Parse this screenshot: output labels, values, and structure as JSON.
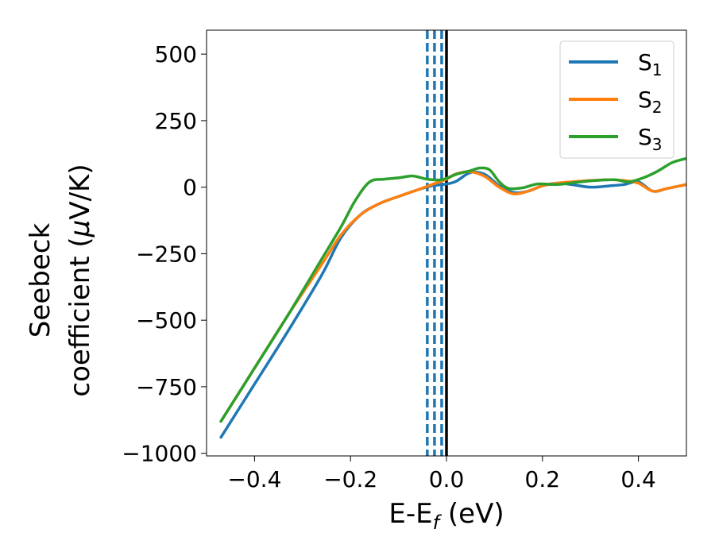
{
  "chart_data": {
    "type": "line",
    "title": "",
    "xlabel": "E-E",
    "xlabel_sub": "f",
    "xlabel_unit": " (eV)",
    "ylabel_line1": "Seebeck",
    "ylabel_line2": "coefficient  (",
    "ylabel_mu": "μ",
    "ylabel_unit": "V/K)",
    "xlim": [
      -0.5,
      0.5
    ],
    "ylim": [
      -1010,
      590
    ],
    "xticks": [
      -0.4,
      -0.2,
      0.0,
      0.2,
      0.4
    ],
    "xtick_labels": [
      "−0.4",
      "−0.2",
      "0.0",
      "0.2",
      "0.4"
    ],
    "yticks": [
      500,
      250,
      0,
      -250,
      -500,
      -750,
      -1000
    ],
    "ytick_labels": [
      "500",
      "250",
      "0",
      "−250",
      "−500",
      "−750",
      "−1000"
    ],
    "grid": false,
    "legend_position": "top-right",
    "reference_lines": {
      "fermi_level": {
        "x": 0.0,
        "color": "#000000",
        "style": "solid"
      },
      "dashed": {
        "x": [
          -0.04,
          -0.025,
          -0.01
        ],
        "color": "#1f77b4",
        "style": "dashed"
      }
    },
    "series": [
      {
        "name": "S",
        "subscript": "1",
        "color": "#1f77b4",
        "points": [
          [
            -0.47,
            -940
          ],
          [
            -0.4,
            -740
          ],
          [
            -0.33,
            -540
          ],
          [
            -0.26,
            -330
          ],
          [
            -0.22,
            -190
          ],
          [
            -0.18,
            -105
          ],
          [
            -0.14,
            -62
          ],
          [
            -0.1,
            -35
          ],
          [
            -0.06,
            -10
          ],
          [
            -0.03,
            5
          ],
          [
            0.0,
            12
          ],
          [
            0.02,
            22
          ],
          [
            0.05,
            55
          ],
          [
            0.08,
            48
          ],
          [
            0.11,
            5
          ],
          [
            0.14,
            -20
          ],
          [
            0.17,
            -15
          ],
          [
            0.2,
            5
          ],
          [
            0.23,
            15
          ],
          [
            0.26,
            10
          ],
          [
            0.3,
            0
          ],
          [
            0.34,
            5
          ],
          [
            0.37,
            10
          ],
          [
            0.4,
            20
          ],
          [
            0.43,
            -15
          ],
          [
            0.46,
            -5
          ],
          [
            0.5,
            10
          ]
        ]
      },
      {
        "name": "S",
        "subscript": "2",
        "color": "#ff7f0e",
        "points": [
          [
            -0.47,
            -880
          ],
          [
            -0.4,
            -680
          ],
          [
            -0.33,
            -480
          ],
          [
            -0.26,
            -290
          ],
          [
            -0.22,
            -180
          ],
          [
            -0.18,
            -105
          ],
          [
            -0.14,
            -62
          ],
          [
            -0.1,
            -35
          ],
          [
            -0.06,
            -10
          ],
          [
            -0.03,
            10
          ],
          [
            0.0,
            30
          ],
          [
            0.02,
            50
          ],
          [
            0.05,
            58
          ],
          [
            0.08,
            40
          ],
          [
            0.11,
            0
          ],
          [
            0.14,
            -25
          ],
          [
            0.17,
            -15
          ],
          [
            0.2,
            5
          ],
          [
            0.23,
            15
          ],
          [
            0.26,
            20
          ],
          [
            0.3,
            25
          ],
          [
            0.34,
            28
          ],
          [
            0.37,
            25
          ],
          [
            0.4,
            15
          ],
          [
            0.43,
            -15
          ],
          [
            0.46,
            -5
          ],
          [
            0.5,
            10
          ]
        ]
      },
      {
        "name": "S",
        "subscript": "3",
        "color": "#2ca02c",
        "points": [
          [
            -0.47,
            -880
          ],
          [
            -0.4,
            -680
          ],
          [
            -0.33,
            -480
          ],
          [
            -0.26,
            -270
          ],
          [
            -0.22,
            -150
          ],
          [
            -0.19,
            -50
          ],
          [
            -0.16,
            20
          ],
          [
            -0.13,
            30
          ],
          [
            -0.1,
            35
          ],
          [
            -0.07,
            42
          ],
          [
            -0.04,
            30
          ],
          [
            -0.01,
            28
          ],
          [
            0.02,
            48
          ],
          [
            0.05,
            62
          ],
          [
            0.07,
            72
          ],
          [
            0.09,
            65
          ],
          [
            0.11,
            20
          ],
          [
            0.13,
            -5
          ],
          [
            0.16,
            -2
          ],
          [
            0.19,
            12
          ],
          [
            0.23,
            10
          ],
          [
            0.27,
            18
          ],
          [
            0.31,
            25
          ],
          [
            0.35,
            28
          ],
          [
            0.38,
            20
          ],
          [
            0.41,
            35
          ],
          [
            0.44,
            60
          ],
          [
            0.47,
            92
          ],
          [
            0.5,
            108
          ]
        ]
      }
    ]
  }
}
